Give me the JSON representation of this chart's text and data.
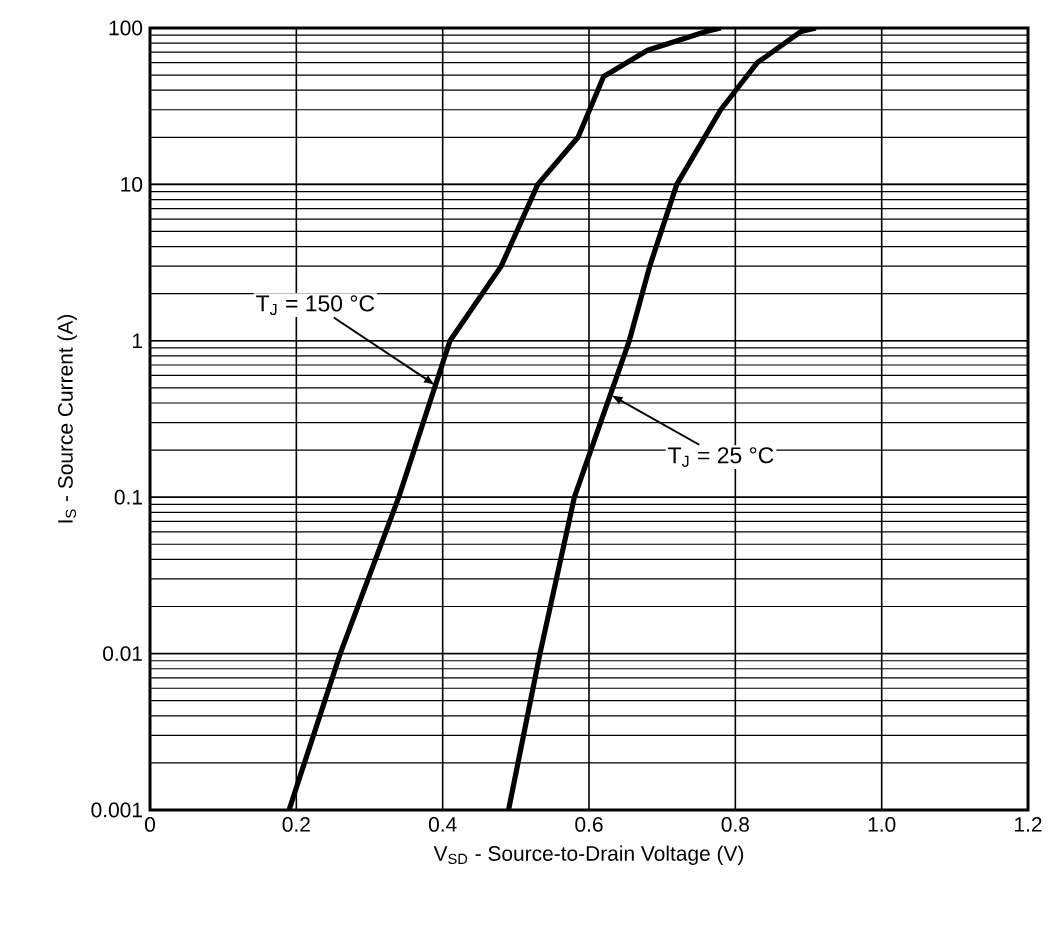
{
  "chart_data": {
    "type": "line",
    "xlabel": "V$_{SD}$ - Source-to-Drain Voltage (V)",
    "ylabel": "I$_{S}$ - Source Current (A)",
    "xlim": [
      0,
      1.2
    ],
    "ylim": [
      0.001,
      100
    ],
    "log": "y",
    "grid": true,
    "marker": "none",
    "line_style": "solid",
    "xticks": [
      0,
      0.2,
      0.4,
      0.6,
      0.8,
      {
        "value": 1,
        "label": "1.0"
      },
      1.2
    ],
    "yticks": [
      0.001,
      0.01,
      0.1,
      1,
      10,
      100
    ],
    "series": [
      {
        "color": "#000000",
        "x": [
          0.19,
          0.26,
          0.34,
          0.41,
          0.48,
          0.53,
          0.585,
          0.62,
          0.68,
          0.76,
          0.78
        ],
        "values": [
          0.001,
          0.01,
          0.1,
          1,
          3,
          10,
          20,
          49,
          72,
          95,
          100
        ]
      },
      {
        "color": "#000000",
        "x": [
          0.49,
          0.533,
          0.58,
          0.655,
          0.683,
          0.72,
          0.78,
          0.83,
          0.89,
          0.91
        ],
        "values": [
          0.001,
          0.01,
          0.1,
          1,
          3,
          10,
          30,
          60,
          95,
          100
        ]
      }
    ],
    "annotations": [
      {
        "text": "T$_{J}$ = 150 °C",
        "x": 0.39,
        "y": 0.52
      },
      {
        "text": "T$_{J}$ = 25 °C",
        "x": 0.63,
        "y": 0.45
      }
    ]
  }
}
